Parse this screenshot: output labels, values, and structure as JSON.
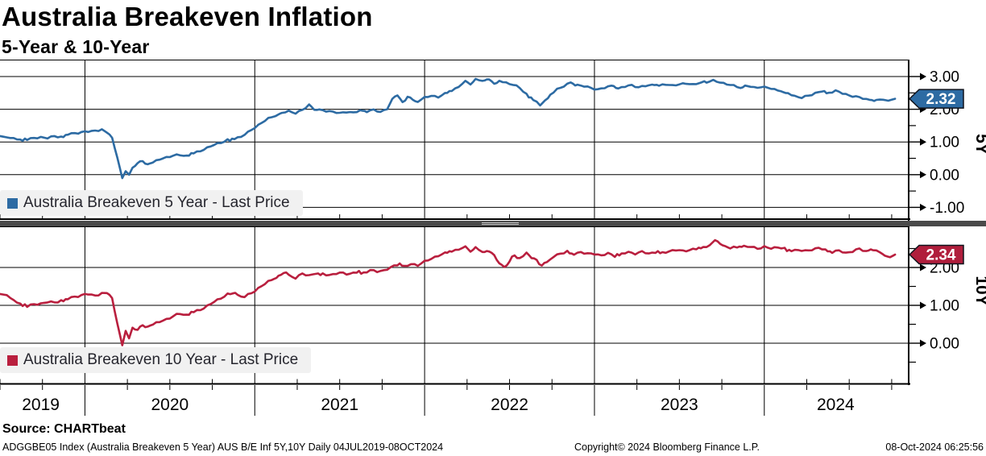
{
  "header": {
    "title": "Australia Breakeven Inflation",
    "subtitle": "5-Year & 10-Year"
  },
  "footer": {
    "source": "Source: CHARTbeat",
    "ticker_line": "ADGGBE05 Index (Australia Breakeven 5 Year) AUS B/E Inf 5Y,10Y  Daily 04JUL2019-08OCT2024",
    "copyright": "Copyright© 2024 Bloomberg Finance L.P.",
    "datetime": "08-Oct-2024 06:25:56"
  },
  "x_axis": {
    "range": [
      2019.5,
      2024.85
    ],
    "year_gridlines": [
      2020,
      2021,
      2022,
      2023,
      2024
    ],
    "labels": [
      {
        "text": "2019",
        "center_year": 2019.74
      },
      {
        "text": "2020",
        "center_year": 2020.5
      },
      {
        "text": "2021",
        "center_year": 2021.5
      },
      {
        "text": "2022",
        "center_year": 2022.5
      },
      {
        "text": "2023",
        "center_year": 2023.5
      },
      {
        "text": "2024",
        "center_year": 2024.42
      }
    ],
    "minor_tick_step_years": 0.25
  },
  "chart_data": [
    {
      "type": "line",
      "name": "australia-breakeven-5-year",
      "legend": "Australia Breakeven 5 Year - Last Price",
      "axis_title": "5Y",
      "last_price": "2.32",
      "line_color": "#2d6ba3",
      "badge_color": "#2d6ba3",
      "y_ticks": [
        {
          "v": 3,
          "label": "3.00"
        },
        {
          "v": 2,
          "label": "2.00"
        },
        {
          "v": 1,
          "label": "1.00"
        },
        {
          "v": 0,
          "label": "0.00"
        },
        {
          "v": -1,
          "label": "-1.00"
        }
      ],
      "ylim": [
        -1.38,
        3.52
      ],
      "points": [
        [
          2019.5,
          1.18
        ],
        [
          2019.54,
          1.14
        ],
        [
          2019.58,
          1.1
        ],
        [
          2019.62,
          1.05
        ],
        [
          2019.66,
          1.08
        ],
        [
          2019.7,
          1.12
        ],
        [
          2019.74,
          1.16
        ],
        [
          2019.78,
          1.13
        ],
        [
          2019.82,
          1.17
        ],
        [
          2019.86,
          1.15
        ],
        [
          2019.9,
          1.22
        ],
        [
          2019.94,
          1.26
        ],
        [
          2019.98,
          1.3
        ],
        [
          2020.02,
          1.33
        ],
        [
          2020.06,
          1.36
        ],
        [
          2020.1,
          1.38
        ],
        [
          2020.13,
          1.3
        ],
        [
          2020.16,
          1.12
        ],
        [
          2020.19,
          0.55
        ],
        [
          2020.22,
          -0.13
        ],
        [
          2020.24,
          0.08
        ],
        [
          2020.26,
          0.02
        ],
        [
          2020.28,
          0.22
        ],
        [
          2020.31,
          0.35
        ],
        [
          2020.34,
          0.42
        ],
        [
          2020.37,
          0.3
        ],
        [
          2020.4,
          0.38
        ],
        [
          2020.44,
          0.46
        ],
        [
          2020.48,
          0.52
        ],
        [
          2020.52,
          0.57
        ],
        [
          2020.56,
          0.6
        ],
        [
          2020.6,
          0.58
        ],
        [
          2020.64,
          0.66
        ],
        [
          2020.68,
          0.74
        ],
        [
          2020.72,
          0.82
        ],
        [
          2020.76,
          0.9
        ],
        [
          2020.8,
          0.97
        ],
        [
          2020.84,
          1.05
        ],
        [
          2020.88,
          1.1
        ],
        [
          2020.92,
          1.18
        ],
        [
          2020.96,
          1.3
        ],
        [
          2021.0,
          1.45
        ],
        [
          2021.04,
          1.58
        ],
        [
          2021.08,
          1.7
        ],
        [
          2021.12,
          1.8
        ],
        [
          2021.16,
          1.88
        ],
        [
          2021.2,
          1.95
        ],
        [
          2021.24,
          1.9
        ],
        [
          2021.28,
          1.98
        ],
        [
          2021.32,
          2.14
        ],
        [
          2021.35,
          2.0
        ],
        [
          2021.38,
          1.96
        ],
        [
          2021.42,
          1.94
        ],
        [
          2021.46,
          1.92
        ],
        [
          2021.5,
          1.88
        ],
        [
          2021.54,
          1.94
        ],
        [
          2021.58,
          1.9
        ],
        [
          2021.62,
          1.96
        ],
        [
          2021.66,
          1.93
        ],
        [
          2021.7,
          1.96
        ],
        [
          2021.74,
          1.91
        ],
        [
          2021.78,
          2.02
        ],
        [
          2021.81,
          2.3
        ],
        [
          2021.84,
          2.46
        ],
        [
          2021.87,
          2.18
        ],
        [
          2021.9,
          2.4
        ],
        [
          2021.93,
          2.28
        ],
        [
          2021.96,
          2.24
        ],
        [
          2022.0,
          2.34
        ],
        [
          2022.04,
          2.4
        ],
        [
          2022.08,
          2.38
        ],
        [
          2022.12,
          2.48
        ],
        [
          2022.16,
          2.58
        ],
        [
          2022.2,
          2.7
        ],
        [
          2022.24,
          2.84
        ],
        [
          2022.27,
          2.78
        ],
        [
          2022.3,
          2.9
        ],
        [
          2022.34,
          2.86
        ],
        [
          2022.38,
          2.93
        ],
        [
          2022.41,
          2.76
        ],
        [
          2022.44,
          2.88
        ],
        [
          2022.48,
          2.82
        ],
        [
          2022.52,
          2.76
        ],
        [
          2022.56,
          2.64
        ],
        [
          2022.6,
          2.45
        ],
        [
          2022.64,
          2.28
        ],
        [
          2022.68,
          2.12
        ],
        [
          2022.71,
          2.26
        ],
        [
          2022.74,
          2.45
        ],
        [
          2022.78,
          2.62
        ],
        [
          2022.82,
          2.72
        ],
        [
          2022.86,
          2.8
        ],
        [
          2022.9,
          2.73
        ],
        [
          2022.94,
          2.7
        ],
        [
          2022.98,
          2.64
        ],
        [
          2023.02,
          2.62
        ],
        [
          2023.06,
          2.67
        ],
        [
          2023.1,
          2.72
        ],
        [
          2023.14,
          2.63
        ],
        [
          2023.18,
          2.68
        ],
        [
          2023.22,
          2.73
        ],
        [
          2023.26,
          2.66
        ],
        [
          2023.3,
          2.72
        ],
        [
          2023.34,
          2.76
        ],
        [
          2023.38,
          2.72
        ],
        [
          2023.42,
          2.77
        ],
        [
          2023.46,
          2.72
        ],
        [
          2023.5,
          2.74
        ],
        [
          2023.54,
          2.79
        ],
        [
          2023.58,
          2.75
        ],
        [
          2023.62,
          2.81
        ],
        [
          2023.66,
          2.85
        ],
        [
          2023.7,
          2.88
        ],
        [
          2023.74,
          2.82
        ],
        [
          2023.78,
          2.76
        ],
        [
          2023.82,
          2.7
        ],
        [
          2023.86,
          2.66
        ],
        [
          2023.9,
          2.72
        ],
        [
          2023.94,
          2.67
        ],
        [
          2023.98,
          2.7
        ],
        [
          2024.02,
          2.66
        ],
        [
          2024.06,
          2.6
        ],
        [
          2024.1,
          2.55
        ],
        [
          2024.14,
          2.48
        ],
        [
          2024.18,
          2.4
        ],
        [
          2024.22,
          2.36
        ],
        [
          2024.26,
          2.43
        ],
        [
          2024.3,
          2.5
        ],
        [
          2024.34,
          2.55
        ],
        [
          2024.38,
          2.5
        ],
        [
          2024.42,
          2.55
        ],
        [
          2024.46,
          2.48
        ],
        [
          2024.5,
          2.43
        ],
        [
          2024.54,
          2.39
        ],
        [
          2024.58,
          2.35
        ],
        [
          2024.62,
          2.29
        ],
        [
          2024.66,
          2.26
        ],
        [
          2024.7,
          2.29
        ],
        [
          2024.73,
          2.26
        ],
        [
          2024.77,
          2.32
        ]
      ]
    },
    {
      "type": "line",
      "name": "australia-breakeven-10-year",
      "legend": "Australia Breakeven 10 Year - Last Price",
      "axis_title": "10Y",
      "last_price": "2.34",
      "line_color": "#b91f3e",
      "badge_color": "#b01e3c",
      "y_ticks": [
        {
          "v": 2,
          "label": "2.00"
        },
        {
          "v": 1,
          "label": "1.00"
        },
        {
          "v": 0,
          "label": "0.00"
        }
      ],
      "ylim": [
        -1.09,
        3.09
      ],
      "points": [
        [
          2019.5,
          1.3
        ],
        [
          2019.54,
          1.27
        ],
        [
          2019.58,
          1.12
        ],
        [
          2019.62,
          1.02
        ],
        [
          2019.66,
          0.98
        ],
        [
          2019.7,
          1.03
        ],
        [
          2019.74,
          1.06
        ],
        [
          2019.78,
          1.1
        ],
        [
          2019.82,
          1.07
        ],
        [
          2019.86,
          1.12
        ],
        [
          2019.9,
          1.16
        ],
        [
          2019.94,
          1.22
        ],
        [
          2019.98,
          1.27
        ],
        [
          2020.02,
          1.31
        ],
        [
          2020.06,
          1.27
        ],
        [
          2020.1,
          1.32
        ],
        [
          2020.13,
          1.34
        ],
        [
          2020.16,
          1.18
        ],
        [
          2020.19,
          0.55
        ],
        [
          2020.22,
          -0.08
        ],
        [
          2020.24,
          0.3
        ],
        [
          2020.26,
          0.15
        ],
        [
          2020.28,
          0.42
        ],
        [
          2020.31,
          0.35
        ],
        [
          2020.34,
          0.48
        ],
        [
          2020.37,
          0.42
        ],
        [
          2020.4,
          0.5
        ],
        [
          2020.44,
          0.56
        ],
        [
          2020.48,
          0.62
        ],
        [
          2020.52,
          0.7
        ],
        [
          2020.56,
          0.78
        ],
        [
          2020.6,
          0.75
        ],
        [
          2020.64,
          0.83
        ],
        [
          2020.68,
          0.9
        ],
        [
          2020.72,
          0.98
        ],
        [
          2020.76,
          1.08
        ],
        [
          2020.8,
          1.18
        ],
        [
          2020.84,
          1.28
        ],
        [
          2020.87,
          1.34
        ],
        [
          2020.9,
          1.27
        ],
        [
          2020.94,
          1.24
        ],
        [
          2020.98,
          1.33
        ],
        [
          2021.02,
          1.45
        ],
        [
          2021.06,
          1.56
        ],
        [
          2021.1,
          1.66
        ],
        [
          2021.14,
          1.76
        ],
        [
          2021.17,
          1.88
        ],
        [
          2021.2,
          1.8
        ],
        [
          2021.24,
          1.74
        ],
        [
          2021.28,
          1.84
        ],
        [
          2021.32,
          1.79
        ],
        [
          2021.36,
          1.84
        ],
        [
          2021.4,
          1.82
        ],
        [
          2021.44,
          1.79
        ],
        [
          2021.48,
          1.84
        ],
        [
          2021.52,
          1.87
        ],
        [
          2021.56,
          1.84
        ],
        [
          2021.6,
          1.88
        ],
        [
          2021.64,
          1.86
        ],
        [
          2021.68,
          1.91
        ],
        [
          2021.72,
          1.88
        ],
        [
          2021.76,
          1.92
        ],
        [
          2021.8,
          2.0
        ],
        [
          2021.84,
          2.09
        ],
        [
          2021.88,
          2.04
        ],
        [
          2021.92,
          2.08
        ],
        [
          2021.96,
          2.06
        ],
        [
          2022.0,
          2.14
        ],
        [
          2022.04,
          2.22
        ],
        [
          2022.08,
          2.32
        ],
        [
          2022.12,
          2.38
        ],
        [
          2022.16,
          2.44
        ],
        [
          2022.2,
          2.49
        ],
        [
          2022.24,
          2.53
        ],
        [
          2022.27,
          2.44
        ],
        [
          2022.3,
          2.51
        ],
        [
          2022.34,
          2.4
        ],
        [
          2022.38,
          2.44
        ],
        [
          2022.41,
          2.31
        ],
        [
          2022.44,
          2.12
        ],
        [
          2022.47,
          1.99
        ],
        [
          2022.5,
          2.18
        ],
        [
          2022.53,
          2.32
        ],
        [
          2022.56,
          2.24
        ],
        [
          2022.6,
          2.37
        ],
        [
          2022.63,
          2.28
        ],
        [
          2022.66,
          2.17
        ],
        [
          2022.69,
          2.06
        ],
        [
          2022.72,
          2.14
        ],
        [
          2022.76,
          2.3
        ],
        [
          2022.8,
          2.38
        ],
        [
          2022.84,
          2.42
        ],
        [
          2022.88,
          2.34
        ],
        [
          2022.92,
          2.4
        ],
        [
          2022.96,
          2.35
        ],
        [
          2023.0,
          2.37
        ],
        [
          2023.04,
          2.33
        ],
        [
          2023.08,
          2.38
        ],
        [
          2023.12,
          2.31
        ],
        [
          2023.16,
          2.35
        ],
        [
          2023.2,
          2.39
        ],
        [
          2023.24,
          2.36
        ],
        [
          2023.28,
          2.41
        ],
        [
          2023.32,
          2.38
        ],
        [
          2023.36,
          2.42
        ],
        [
          2023.4,
          2.39
        ],
        [
          2023.44,
          2.43
        ],
        [
          2023.48,
          2.45
        ],
        [
          2023.52,
          2.42
        ],
        [
          2023.56,
          2.46
        ],
        [
          2023.6,
          2.49
        ],
        [
          2023.64,
          2.54
        ],
        [
          2023.68,
          2.61
        ],
        [
          2023.71,
          2.72
        ],
        [
          2023.74,
          2.63
        ],
        [
          2023.77,
          2.56
        ],
        [
          2023.8,
          2.49
        ],
        [
          2023.84,
          2.53
        ],
        [
          2023.88,
          2.56
        ],
        [
          2023.92,
          2.55
        ],
        [
          2023.96,
          2.52
        ],
        [
          2024.0,
          2.55
        ],
        [
          2024.04,
          2.5
        ],
        [
          2024.08,
          2.53
        ],
        [
          2024.12,
          2.48
        ],
        [
          2024.16,
          2.44
        ],
        [
          2024.2,
          2.47
        ],
        [
          2024.24,
          2.44
        ],
        [
          2024.28,
          2.49
        ],
        [
          2024.32,
          2.52
        ],
        [
          2024.36,
          2.45
        ],
        [
          2024.4,
          2.4
        ],
        [
          2024.44,
          2.43
        ],
        [
          2024.48,
          2.38
        ],
        [
          2024.52,
          2.44
        ],
        [
          2024.56,
          2.5
        ],
        [
          2024.6,
          2.44
        ],
        [
          2024.64,
          2.47
        ],
        [
          2024.68,
          2.38
        ],
        [
          2024.71,
          2.31
        ],
        [
          2024.74,
          2.27
        ],
        [
          2024.77,
          2.34
        ]
      ]
    }
  ],
  "colors": {
    "grid": "#000000",
    "panel_divider": "#4a4a4a",
    "legend_bg": "#f1f1f1",
    "badge_text": "#ffffff"
  }
}
